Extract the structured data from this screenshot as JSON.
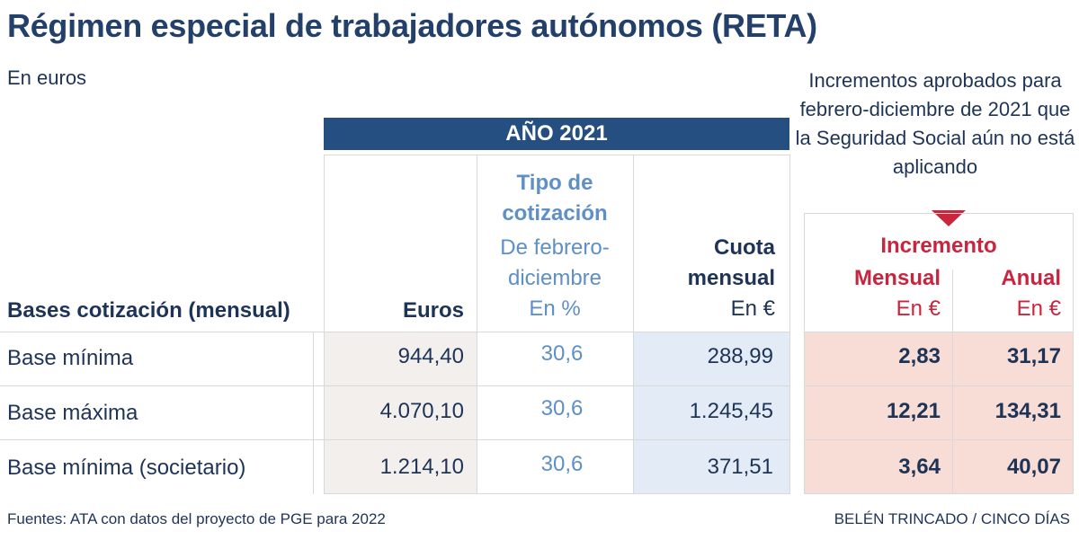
{
  "title": "Régimen especial de trabajadores autónomos (RETA)",
  "subtitle": "En euros",
  "side_note": "Incrementos aprobados para febrero-diciembre de 2021 que la Seguridad Social aún no está aplicando",
  "year_header": "AÑO 2021",
  "headers": {
    "bases": "Bases cotización (mensual)",
    "euros": "Euros",
    "tipo_line1": "Tipo de",
    "tipo_line2": "cotización",
    "tipo_sub1": "De febrero-",
    "tipo_sub2": "diciembre",
    "tipo_unit": "En %",
    "cuota_line1": "Cuota",
    "cuota_line2": "mensual",
    "cuota_unit": "En €",
    "incremento": "Incremento",
    "mensual": "Mensual",
    "mensual_unit": "En €",
    "anual": "Anual",
    "anual_unit": "En €"
  },
  "rows": [
    {
      "label": "Base mínima",
      "euros": "944,40",
      "tipo": "30,6",
      "cuota": "288,99",
      "mensual": "2,83",
      "anual": "31,17"
    },
    {
      "label": "Base máxima",
      "euros": "4.070,10",
      "tipo": "30,6",
      "cuota": "1.245,45",
      "mensual": "12,21",
      "anual": "134,31"
    },
    {
      "label": "Base mínima (societario)",
      "euros": "1.214,10",
      "tipo": "30,6",
      "cuota": "371,51",
      "mensual": "3,64",
      "anual": "40,07"
    }
  ],
  "footer_source": "Fuentes: ATA con datos del proyecto de PGE para 2022",
  "footer_credit": "BELÉN TRINCADO / CINCO DÍAS",
  "colors": {
    "navy": "#254f80",
    "light_blue_text": "#5e8fc6",
    "red": "#c8253f",
    "euros_fill": "#f2efec",
    "cuota_fill": "#e3ebf6",
    "increment_fill": "#f8dcd6"
  }
}
